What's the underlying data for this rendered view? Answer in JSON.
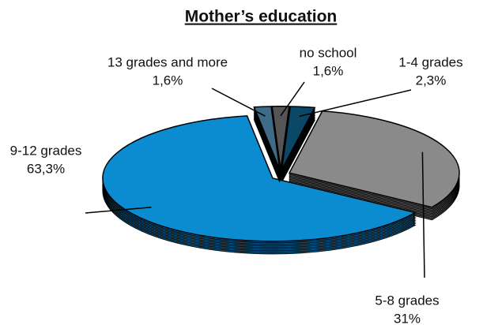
{
  "chart_data": {
    "type": "pie",
    "title": "Mother’s education",
    "categories": [
      "no school",
      "1-4 grades",
      "5-8 grades",
      "9-12 grades",
      "13 grades and more"
    ],
    "values": [
      1.6,
      2.3,
      31,
      63.3,
      1.6
    ],
    "value_labels": [
      "1,6%",
      "2,3%",
      "31%",
      "63,3%",
      "1,6%"
    ],
    "colors": [
      "#555555",
      "#0b4868",
      "#8a8a8a",
      "#0b8bd0",
      "#3e6b86"
    ]
  }
}
